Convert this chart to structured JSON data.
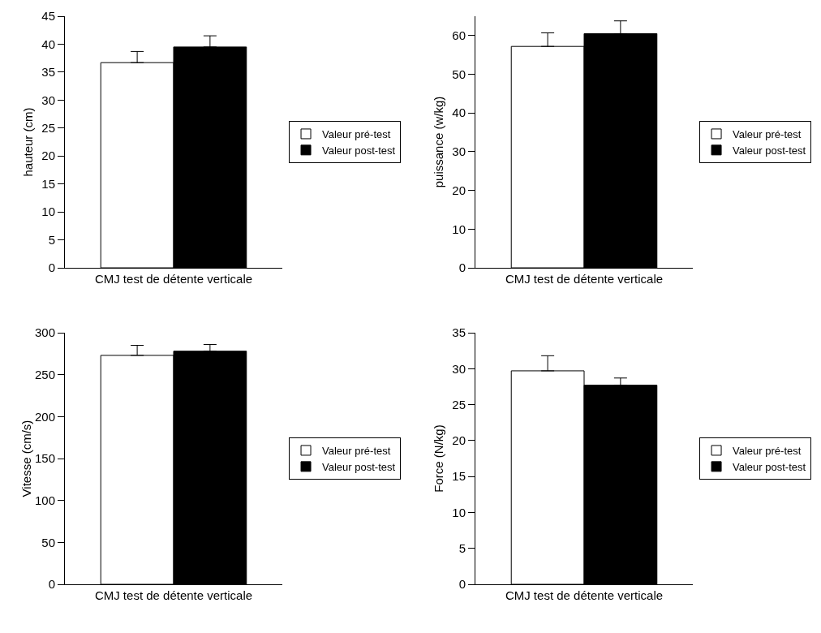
{
  "chart_data": [
    {
      "type": "bar",
      "ylabel": "hauteur (cm)",
      "categories": [
        "CMJ test de détente verticale"
      ],
      "ylim": [
        0,
        45
      ],
      "yticks": [
        0,
        5,
        10,
        15,
        20,
        25,
        30,
        35,
        40,
        45
      ],
      "legend": "right",
      "series": [
        {
          "name": "Valeur pré-test",
          "color": "#ffffff",
          "values": [
            36.7
          ],
          "errors": [
            [
              36.7,
              38.7
            ]
          ]
        },
        {
          "name": "Valeur post-test",
          "color": "#000000",
          "values": [
            39.5
          ],
          "errors": [
            [
              39.5,
              41.5
            ]
          ]
        }
      ]
    },
    {
      "type": "bar",
      "ylabel": "puissance (w/kg)",
      "categories": [
        "CMJ test de détente verticale"
      ],
      "ylim": [
        0,
        65
      ],
      "yticks": [
        0,
        10,
        20,
        30,
        40,
        50,
        60
      ],
      "legend": "right",
      "series": [
        {
          "name": "Valeur pré-test",
          "color": "#ffffff",
          "values": [
            57.2
          ],
          "errors": [
            [
              57.2,
              60.7
            ]
          ]
        },
        {
          "name": "Valeur post-test",
          "color": "#000000",
          "values": [
            60.5
          ],
          "errors": [
            [
              60.5,
              63.8
            ]
          ]
        }
      ]
    },
    {
      "type": "bar",
      "ylabel": "Vitesse (cm/s)",
      "categories": [
        "CMJ test de détente verticale"
      ],
      "ylim": [
        0,
        300
      ],
      "yticks": [
        0,
        50,
        100,
        150,
        200,
        250,
        300
      ],
      "legend": "right",
      "series": [
        {
          "name": "Valeur pré-test",
          "color": "#ffffff",
          "values": [
            273
          ],
          "errors": [
            [
              273,
              285
            ]
          ]
        },
        {
          "name": "Valeur post-test",
          "color": "#000000",
          "values": [
            278
          ],
          "errors": [
            [
              278,
              286
            ]
          ]
        }
      ]
    },
    {
      "type": "bar",
      "ylabel": "Force (N/kg)",
      "categories": [
        "CMJ test de détente verticale"
      ],
      "ylim": [
        0,
        35
      ],
      "yticks": [
        0,
        5,
        10,
        15,
        20,
        25,
        30,
        35
      ],
      "legend": "right",
      "series": [
        {
          "name": "Valeur pré-test",
          "color": "#ffffff",
          "values": [
            29.7
          ],
          "errors": [
            [
              29.7,
              31.8
            ]
          ]
        },
        {
          "name": "Valeur post-test",
          "color": "#000000",
          "values": [
            27.7
          ],
          "errors": [
            [
              27.7,
              28.7
            ]
          ]
        }
      ]
    }
  ]
}
